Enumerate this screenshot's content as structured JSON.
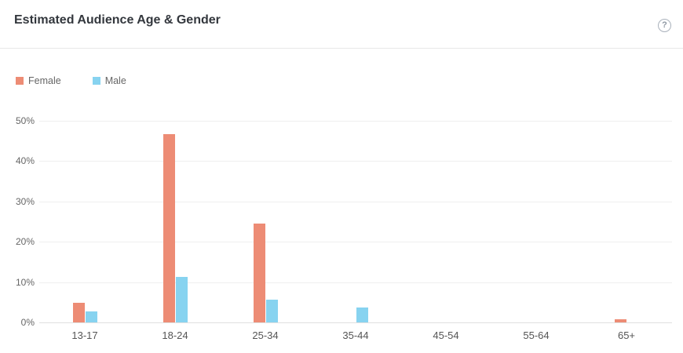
{
  "header": {
    "title": "Estimated Audience Age & Gender",
    "help_glyph": "?"
  },
  "colors": {
    "female": "#ED8C75",
    "male": "#87D3F0",
    "gridline": "#efefef",
    "axis_line": "#e0e0e0",
    "title_text": "#33373d",
    "label_text": "#666666"
  },
  "chart_data": {
    "type": "bar",
    "title": "Estimated Audience Age & Gender",
    "categories": [
      "13-17",
      "18-24",
      "25-34",
      "35-44",
      "45-54",
      "55-64",
      "65+"
    ],
    "series": [
      {
        "name": "Female",
        "color": "#ED8C75",
        "values": [
          4.9,
          46.7,
          24.5,
          0,
          0,
          0,
          0.7
        ]
      },
      {
        "name": "Male",
        "color": "#87D3F0",
        "values": [
          2.7,
          11.2,
          5.7,
          3.6,
          0,
          0,
          0
        ]
      }
    ],
    "xlabel": "",
    "ylabel": "",
    "ylim": [
      0,
      50
    ],
    "yticks": [
      0,
      10,
      20,
      30,
      40,
      50
    ],
    "ytick_format": "{v}%",
    "grid": true,
    "legend_position": "top-left"
  }
}
